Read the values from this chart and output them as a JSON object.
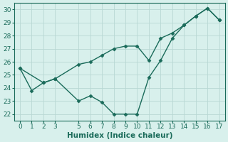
{
  "line1_x": [
    0,
    2,
    3,
    5,
    6,
    7,
    8,
    9,
    10,
    11,
    12,
    13,
    14,
    15,
    16,
    17
  ],
  "line1_y": [
    25.5,
    24.4,
    24.7,
    25.8,
    26.0,
    26.5,
    27.0,
    27.2,
    27.2,
    26.1,
    27.8,
    28.2,
    28.8,
    29.5,
    30.1,
    29.2
  ],
  "line2_x": [
    0,
    1,
    2,
    3,
    5,
    6,
    7,
    8,
    9,
    10,
    11,
    12,
    13,
    14,
    15,
    16,
    17
  ],
  "line2_y": [
    25.5,
    23.8,
    24.4,
    24.7,
    23.0,
    23.4,
    22.9,
    22.0,
    22.0,
    22.0,
    24.8,
    26.1,
    27.8,
    28.8,
    29.5,
    30.1,
    29.2
  ],
  "line_color": "#1a6b5a",
  "bg_color": "#d8f0ec",
  "grid_color": "#b8d8d4",
  "xlabel": "Humidex (Indice chaleur)",
  "xlim": [
    -0.5,
    17.5
  ],
  "ylim": [
    21.5,
    30.5
  ],
  "yticks": [
    22,
    23,
    24,
    25,
    26,
    27,
    28,
    29,
    30
  ],
  "xticks": [
    0,
    1,
    2,
    3,
    5,
    6,
    7,
    8,
    9,
    10,
    11,
    12,
    13,
    14,
    15,
    16,
    17
  ],
  "marker": "D",
  "markersize": 2.5,
  "linewidth": 1.0,
  "xlabel_fontsize": 7.5,
  "tick_fontsize": 6.5
}
